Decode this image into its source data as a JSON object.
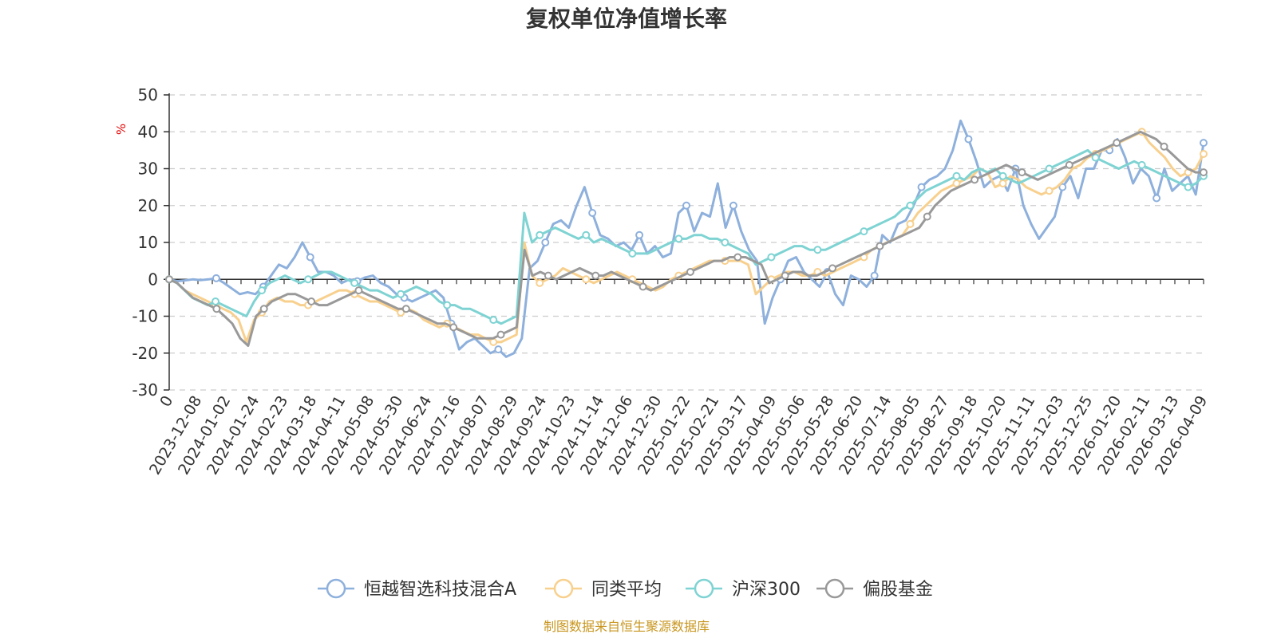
{
  "chart_data": {
    "type": "line",
    "title": "复权单位净值增长率",
    "ylabel": "%",
    "ylim": [
      -30,
      50
    ],
    "yticks": [
      -30,
      -20,
      -10,
      0,
      10,
      20,
      30,
      40,
      50
    ],
    "grid": true,
    "legend_position": "bottom",
    "source": "制图数据来自恒生聚源数据库",
    "x_tick_labels": [
      "0",
      "2023-12-08",
      "2024-01-02",
      "2024-01-24",
      "2024-02-23",
      "2024-03-18",
      "2024-04-11",
      "2024-05-08",
      "2024-05-30",
      "2024-06-24",
      "2024-07-16",
      "2024-08-07",
      "2024-08-29",
      "2024-09-24",
      "2024-10-23",
      "2024-11-14",
      "2024-12-06",
      "2024-12-30",
      "2025-01-22",
      "2025-02-21",
      "2025-03-17",
      "2025-04-09",
      "2025-05-06",
      "2025-05-28",
      "2025-06-20",
      "2025-07-14",
      "2025-08-05",
      "2025-08-27",
      "2025-09-18",
      "2025-10-20",
      "2025-11-11",
      "2025-12-03",
      "2025-12-25",
      "2026-01-20",
      "2026-02-11",
      "2026-03-13",
      "2026-04-09"
    ],
    "series": [
      {
        "name": "恒越智选科技混合A",
        "color": "#8eb0dc",
        "values": [
          0,
          -0.5,
          -0.3,
          0,
          -0.2,
          0,
          0.3,
          -1,
          -2.5,
          -4,
          -3.5,
          -4,
          -2,
          1,
          4,
          3,
          6,
          10,
          6,
          2,
          2,
          1,
          -1,
          0,
          -0.5,
          0.5,
          1,
          -1,
          -2,
          -4,
          -5,
          -6,
          -5,
          -4,
          -3,
          -5,
          -12,
          -19,
          -17,
          -16,
          -18,
          -20,
          -19,
          -21,
          -20,
          -16,
          3,
          5,
          10,
          15,
          16,
          14,
          20,
          25,
          18,
          12,
          11,
          9,
          10,
          8,
          12,
          7,
          9,
          6,
          7,
          18,
          20,
          13,
          18,
          17,
          26,
          14,
          20,
          13,
          8,
          5,
          -12,
          -5,
          0,
          5,
          6,
          2,
          0,
          -2,
          2,
          -4,
          -7,
          1,
          0,
          -2,
          1,
          12,
          10,
          15,
          16,
          20,
          25,
          27,
          28,
          30,
          35,
          43,
          38,
          32,
          25,
          27,
          28,
          24,
          30,
          20,
          15,
          11,
          14,
          17,
          25,
          28,
          22,
          30,
          30,
          35,
          35,
          38,
          33,
          26,
          30,
          28,
          22,
          30,
          24,
          26,
          28,
          23,
          37
        ]
      },
      {
        "name": "同类平均",
        "color": "#f8d08e",
        "values": [
          0,
          -1,
          -3,
          -4,
          -5,
          -6,
          -7,
          -8,
          -9,
          -11,
          -17,
          -11,
          -9,
          -6,
          -5,
          -6,
          -6,
          -7,
          -7,
          -6,
          -5,
          -4,
          -3,
          -3,
          -4,
          -5,
          -6,
          -6,
          -7,
          -8,
          -9,
          -8,
          -9,
          -11,
          -12,
          -13,
          -12,
          -13,
          -14,
          -15,
          -15,
          -16,
          -17,
          -17,
          -16,
          -15,
          10,
          1,
          -1,
          0,
          1,
          3,
          2,
          1,
          0,
          -1,
          0,
          1,
          2,
          1,
          0,
          -1,
          -2,
          -3,
          -2,
          0,
          1,
          2,
          3,
          4,
          5,
          5,
          5,
          5,
          5,
          4,
          -4,
          -2,
          0,
          1,
          2,
          2,
          1,
          1,
          2,
          1,
          2,
          3,
          4,
          5,
          6,
          8,
          9,
          10,
          11,
          12,
          15,
          18,
          20,
          22,
          24,
          25,
          26,
          27,
          28,
          30,
          29,
          25,
          26,
          28,
          27,
          25,
          24,
          23,
          24,
          25,
          27,
          30,
          31,
          33,
          34,
          35,
          36,
          37,
          38,
          39,
          40,
          37,
          35,
          33,
          30,
          28,
          29,
          30,
          34
        ]
      },
      {
        "name": "沪深300",
        "color": "#7fd3d3",
        "values": [
          0,
          -1,
          -3,
          -5,
          -6,
          -7,
          -6,
          -7,
          -8,
          -9,
          -10,
          -6,
          -3,
          -1,
          0,
          1,
          0,
          -1,
          0,
          1,
          2,
          2,
          1,
          0,
          -1,
          -2,
          -3,
          -3,
          -4,
          -5,
          -4,
          -3,
          -2,
          -3,
          -4,
          -6,
          -7,
          -7,
          -8,
          -8,
          -9,
          -10,
          -11,
          -12,
          -11,
          -10,
          18,
          10,
          12,
          13,
          14,
          13,
          12,
          11,
          12,
          10,
          11,
          10,
          9,
          8,
          7,
          7,
          7,
          8,
          9,
          10,
          11,
          11,
          12,
          12,
          11,
          11,
          10,
          9,
          8,
          7,
          4,
          5,
          6,
          7,
          8,
          9,
          9,
          8,
          8,
          8,
          9,
          10,
          11,
          12,
          13,
          14,
          15,
          16,
          17,
          19,
          20,
          22,
          24,
          25,
          26,
          27,
          28,
          27,
          29,
          30,
          29,
          30,
          28,
          27,
          26,
          27,
          28,
          29,
          30,
          31,
          32,
          33,
          34,
          35,
          33,
          32,
          31,
          30,
          31,
          32,
          31,
          30,
          29,
          28,
          27,
          26,
          25,
          26,
          28
        ]
      },
      {
        "name": "偏股基金",
        "color": "#999999",
        "values": [
          0,
          -1,
          -3,
          -5,
          -6,
          -7,
          -8,
          -10,
          -12,
          -16,
          -18,
          -10,
          -8,
          -6,
          -5,
          -4,
          -4,
          -5,
          -6,
          -7,
          -7,
          -6,
          -5,
          -4,
          -3,
          -4,
          -5,
          -6,
          -7,
          -8,
          -8,
          -9,
          -10,
          -11,
          -12,
          -12,
          -13,
          -14,
          -15,
          -16,
          -16,
          -16,
          -15,
          -14,
          -13,
          8,
          1,
          2,
          1,
          0,
          1,
          2,
          3,
          2,
          1,
          1,
          2,
          1,
          0,
          -1,
          -2,
          -3,
          -2,
          -1,
          0,
          1,
          2,
          3,
          4,
          5,
          5,
          6,
          6,
          6,
          5,
          4,
          -1,
          0,
          1,
          2,
          2,
          1,
          1,
          2,
          3,
          4,
          5,
          6,
          7,
          8,
          9,
          10,
          11,
          12,
          13,
          14,
          17,
          20,
          22,
          24,
          25,
          26,
          27,
          28,
          29,
          30,
          31,
          30,
          29,
          28,
          27,
          28,
          29,
          30,
          31,
          32,
          33,
          34,
          35,
          36,
          37,
          38,
          39,
          40,
          39,
          38,
          36,
          34,
          32,
          30,
          29,
          29
        ]
      }
    ]
  }
}
